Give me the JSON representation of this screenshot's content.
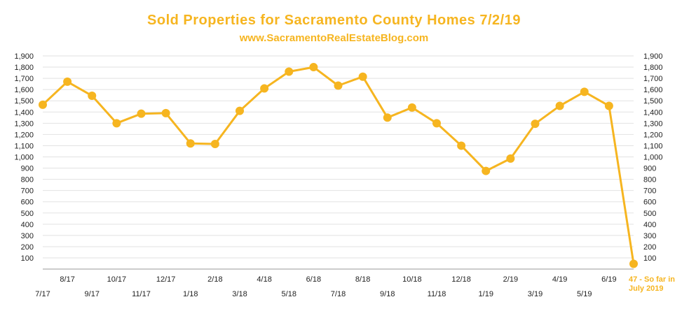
{
  "header": {
    "title": "Sold Properties for Sacramento County Homes 7/2/19",
    "subtitle": "www.SacramentoRealEstateBlog.com"
  },
  "chart_data": {
    "type": "line",
    "title": "Sold Properties for Sacramento County Homes 7/2/19",
    "subtitle": "www.SacramentoRealEstateBlog.com",
    "xlabel": "",
    "ylabel": "",
    "ylim": [
      0,
      1900
    ],
    "yticks": [
      100,
      200,
      300,
      400,
      500,
      600,
      700,
      800,
      900,
      "1,000",
      "1,100",
      "1,200",
      "1,300",
      "1,400",
      "1,500",
      "1,600",
      "1,700",
      "1,800",
      "1,900"
    ],
    "grid": true,
    "categories": [
      "7/17",
      "8/17",
      "9/17",
      "10/17",
      "11/17",
      "12/17",
      "1/18",
      "2/18",
      "3/18",
      "4/18",
      "5/18",
      "6/18",
      "7/18",
      "8/18",
      "9/18",
      "10/18",
      "11/18",
      "12/18",
      "1/19",
      "2/19",
      "3/19",
      "4/19",
      "5/19",
      "6/19",
      "July 2019"
    ],
    "series": [
      {
        "values": [
          1465,
          1670,
          1545,
          1300,
          1385,
          1390,
          1120,
          1115,
          1410,
          1610,
          1760,
          1800,
          1635,
          1715,
          1350,
          1440,
          1300,
          1100,
          875,
          985,
          1295,
          1455,
          1580,
          1455,
          47
        ]
      }
    ],
    "annotation": {
      "line1": "47 - So far in",
      "line2": "July 2019"
    },
    "color": "#f6b520"
  }
}
